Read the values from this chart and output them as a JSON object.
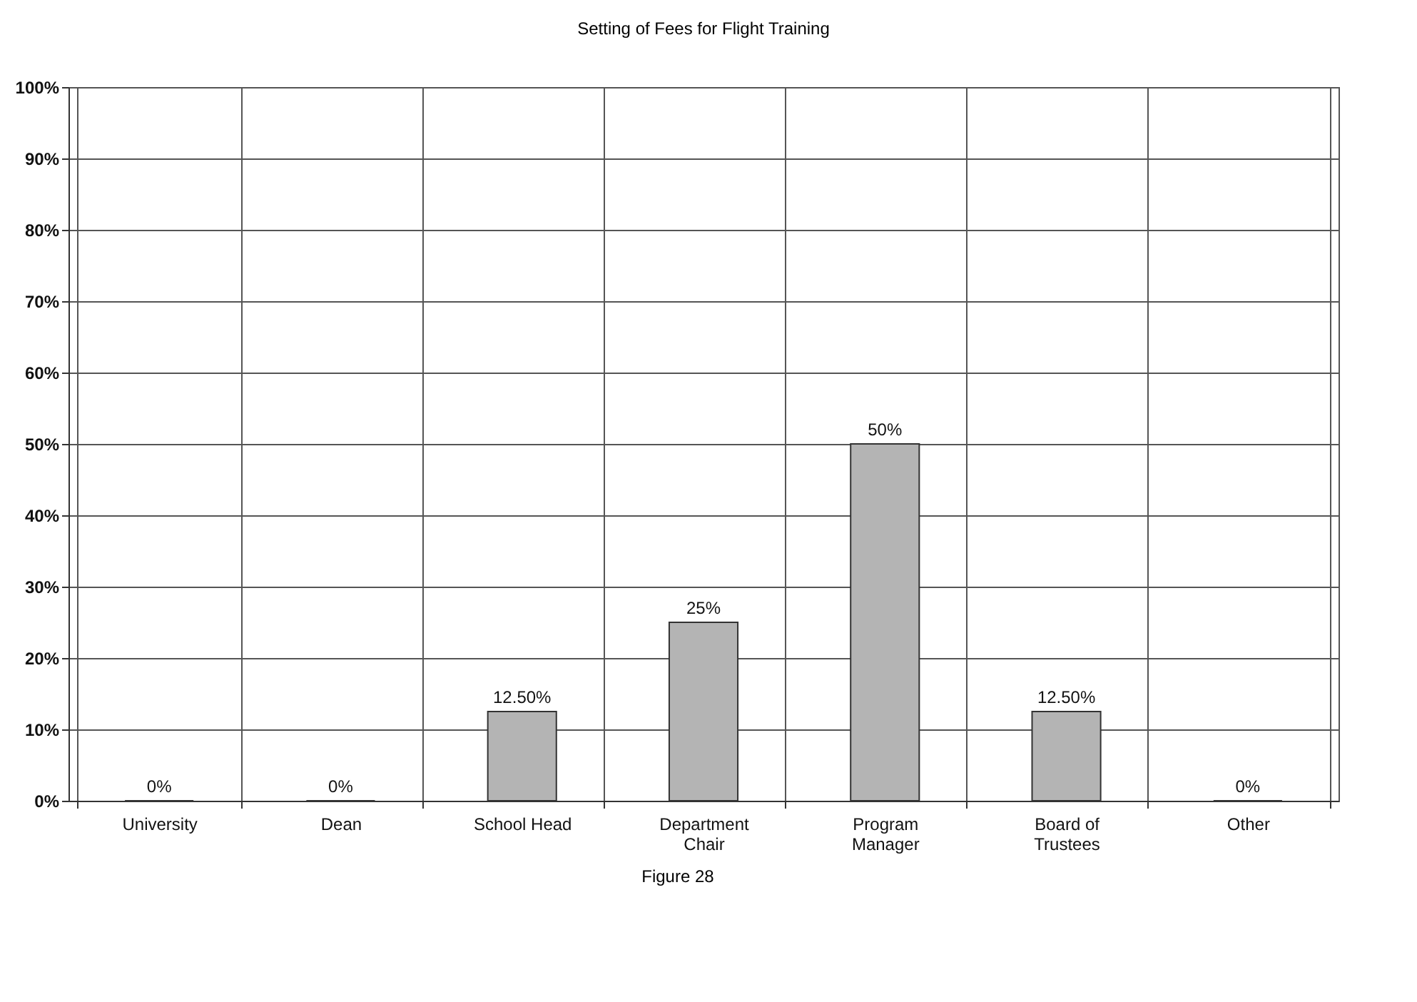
{
  "chart_data": {
    "type": "bar",
    "title": "Setting of Fees for Flight Training",
    "categories": [
      "University",
      "Dean",
      "School Head",
      "Department Chair",
      "Program Manager",
      "Board of Trustees",
      "Other"
    ],
    "values": [
      0,
      0,
      12.5,
      25,
      50,
      12.5,
      0
    ],
    "value_labels": [
      "0%",
      "0%",
      "12.50%",
      "25%",
      "50%",
      "12.50%",
      "0%"
    ],
    "color": "#b4b4b4",
    "ylim": [
      0,
      100
    ],
    "yticks": [
      {
        "value": 0,
        "label": "0%"
      },
      {
        "value": 10,
        "label": "10%"
      },
      {
        "value": 20,
        "label": "20%"
      },
      {
        "value": 30,
        "label": "30%"
      },
      {
        "value": 40,
        "label": "40%"
      },
      {
        "value": 50,
        "label": "50%"
      },
      {
        "value": 60,
        "label": "60%"
      },
      {
        "value": 70,
        "label": "70%"
      },
      {
        "value": 80,
        "label": "80%"
      },
      {
        "value": 90,
        "label": "90%"
      },
      {
        "value": 100,
        "label": "100%"
      }
    ],
    "grid": true,
    "annotations": [
      "Figure 28"
    ]
  }
}
